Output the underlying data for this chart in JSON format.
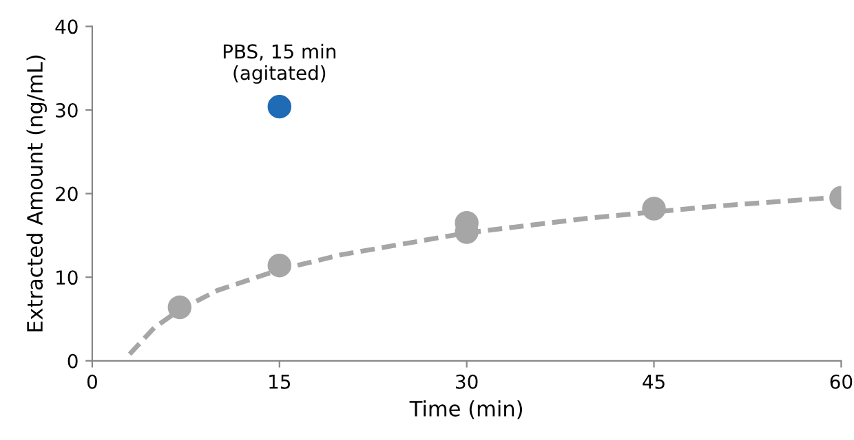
{
  "chart_data": {
    "type": "scatter",
    "xlabel": "Time (min)",
    "ylabel": "Extracted Amount (ng/mL)",
    "xlim": [
      0,
      60
    ],
    "xticks": [
      0,
      15,
      30,
      45,
      60
    ],
    "ylim": [
      0,
      40
    ],
    "yticks": [
      0,
      10,
      20,
      30,
      40
    ],
    "grid": false,
    "series": [
      {
        "type": "line",
        "color": "#a6a6a6",
        "line_style": "dashed",
        "marker": "none",
        "x": [
          3,
          5,
          7,
          10,
          15,
          20,
          30,
          40,
          50,
          60
        ],
        "values": [
          0.8,
          4.0,
          6.1,
          8.4,
          10.9,
          12.7,
          15.3,
          17.1,
          18.5,
          19.6
        ]
      },
      {
        "color": "#a6a6a6",
        "marker": "circle",
        "x": [
          7,
          15,
          30,
          30,
          45,
          60
        ],
        "values": [
          6.4,
          11.4,
          16.5,
          15.4,
          18.2,
          19.5
        ]
      },
      {
        "color": "#1f6bb5",
        "marker": "circle",
        "x": [
          15
        ],
        "values": [
          30.4
        ]
      }
    ],
    "annotations": [
      {
        "text": "PBS, 15 min\n(agitated)",
        "x": 15,
        "y": 30.4
      }
    ]
  }
}
